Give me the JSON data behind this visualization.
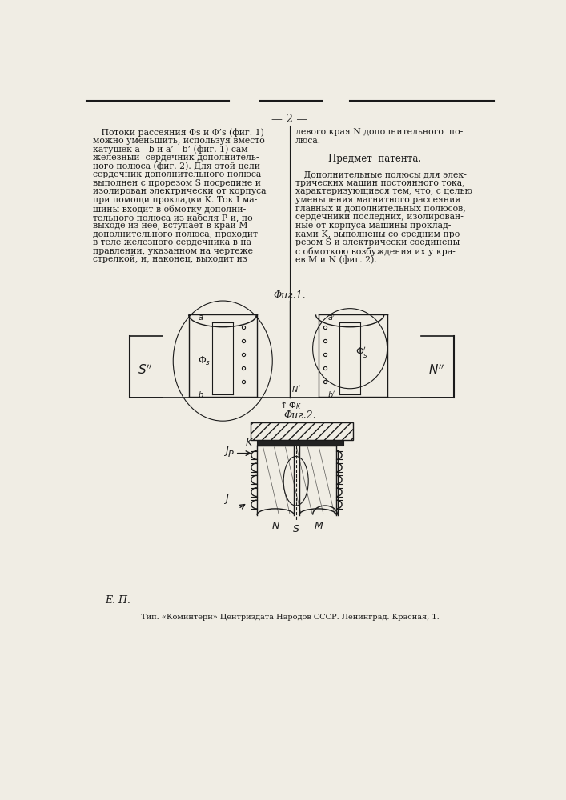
{
  "bg_color": "#f0ede4",
  "tc": "#1a1a1a",
  "page_number": "— 2 —",
  "left_col": [
    "   Потоки рассеяния Φs и Φ’s (фиг. 1)",
    "можно уменьшить, используя вместо",
    "катушек a—b и a’—b’ (фиг. 1) сам",
    "железный  сердечник дополнитель-",
    "ного полюса (фиг. 2). Для этой цели",
    "сердечник дополнительного полюса",
    "выполнен с прорезом S посредине и",
    "изолирован электрически от корпуса",
    "при помощи прокладки K. Ток I ма-",
    "шины входит в обмотку дополни-",
    "тельного полюса из кабеля P и, по",
    "выходе из нее, вступает в край M",
    "дополнительного полюса, проходит",
    "в теле железного сердечника в на-",
    "правлении, указанном на чертеже",
    "стрелкой, и, наконец, выходит из"
  ],
  "right_col": [
    "левого края N дополнительного  по-",
    "люса.",
    "",
    "Предмет  патента.",
    "",
    "   Дополнительные полюсы для элек-",
    "трических машин постоянного тока,",
    "характеризующиеся тем, что, с целью",
    "уменьшения магнитного рассеяния",
    "главных и дополнительных полюсов,",
    "сердечники последних, изолирован-",
    "ные от корпуса машины проклад-",
    "ками K, выполнены со средним про-",
    "резом S и электрически соединены",
    "с обмоткою возбуждения их у кра-",
    "ев M и N (фиг. 2)."
  ],
  "fig1_label": "Φиг.1.",
  "fig2_label": "Φиг.2.",
  "footer_left": "E. П.",
  "footer_center": "Тип. «Коминтерн» Центриздата Народов СССР. Ленинград. Красная, 1."
}
